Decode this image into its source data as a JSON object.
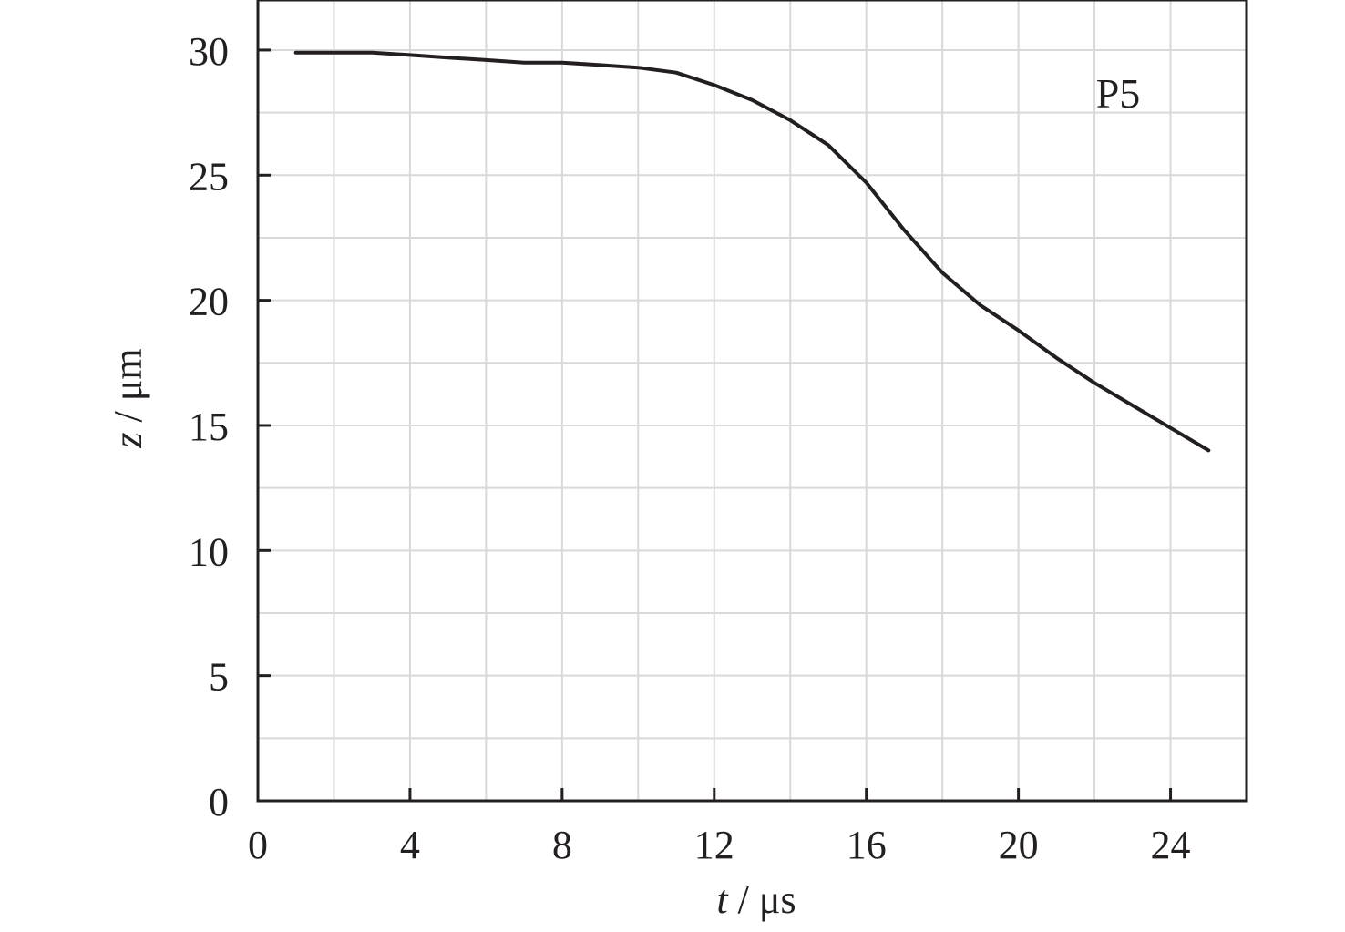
{
  "colors": {
    "axis": "#231f20",
    "grid": "#d9d9d9",
    "line": "#231f20",
    "background": "#ffffff"
  },
  "chart_data": {
    "type": "line",
    "title": "",
    "xlabel": {
      "var": "t",
      "unit": " / μs"
    },
    "ylabel": {
      "var": "z",
      "unit": " / μm"
    },
    "xlim": [
      0,
      26
    ],
    "ylim": [
      0,
      32
    ],
    "x_ticks": [
      0,
      4,
      8,
      12,
      16,
      20,
      24
    ],
    "y_ticks": [
      0,
      5,
      10,
      15,
      20,
      25,
      30
    ],
    "x_grid_step": 2,
    "y_grid_step": 2.5,
    "grid": true,
    "annotation": "P5",
    "series": [
      {
        "x": [
          1,
          2,
          3,
          4,
          5,
          6,
          7,
          8,
          9,
          10,
          11,
          12,
          13,
          14,
          15,
          16,
          17,
          18,
          19,
          20,
          21,
          22,
          23,
          24,
          25
        ],
        "y": [
          29.9,
          29.9,
          29.9,
          29.8,
          29.7,
          29.6,
          29.5,
          29.5,
          29.4,
          29.3,
          29.1,
          28.6,
          28.0,
          27.2,
          26.2,
          24.7,
          22.8,
          21.1,
          19.8,
          18.8,
          17.7,
          16.7,
          15.8,
          14.9,
          14.0
        ]
      }
    ]
  }
}
